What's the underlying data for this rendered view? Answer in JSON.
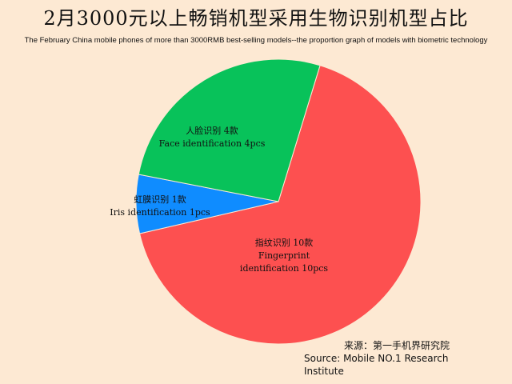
{
  "chart_data": {
    "type": "pie",
    "title": "2月3000元以上畅销机型采用生物识别机型占比",
    "subtitle": "The February China mobile phones of more than 3000RMB best-selling models--the proportion graph of models with biometric technology",
    "slices": [
      {
        "label_cn": "指纹识别 10款",
        "label_en_1": "Fingerprint",
        "label_en_2": "identification 10pcs",
        "value": 10,
        "color": "#fd5050"
      },
      {
        "label_cn": "虹膜识别 1款",
        "label_en": "Iris identification 1pcs",
        "value": 1,
        "color": "#0f8cff"
      },
      {
        "label_cn": "人脸识别 4款",
        "label_en": "Face identification 4pcs",
        "value": 4,
        "color": "#08c25a"
      }
    ],
    "source_cn": "来源：第一手机界研究院",
    "source_en": "Source: Mobile NO.1 Research Institute"
  }
}
